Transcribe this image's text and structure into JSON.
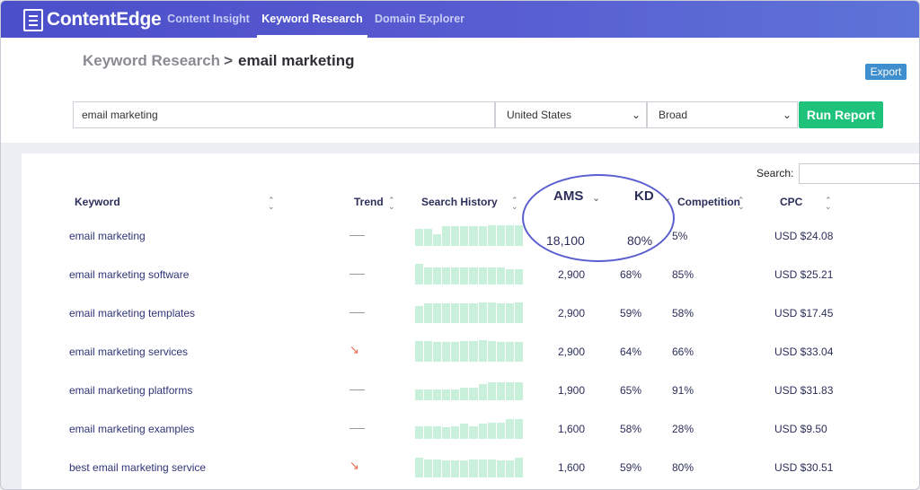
{
  "app": {
    "logo_text": "ContentEdge",
    "colors": {
      "nav": "#5659cf",
      "accent_green": "#1ec27a",
      "export_blue": "#3f8fcf",
      "trend_down": "#e8674a",
      "bar_fill": "#c9f0db"
    }
  },
  "nav": {
    "items": [
      {
        "label": "Content Insight"
      },
      {
        "label": "Keyword Research"
      },
      {
        "label": "Domain Explorer"
      }
    ]
  },
  "breadcrumb": {
    "root": "Keyword Research",
    "separator": ">",
    "current": "email marketing"
  },
  "toolbar": {
    "export_label": "Export",
    "search_value": "email marketing",
    "country": "United States",
    "match_type": "Broad",
    "run_label": "Run Report"
  },
  "table": {
    "search_label": "Search:",
    "headers": {
      "keyword": "Keyword",
      "trend": "Trend",
      "history": "Search History",
      "ams": "AMS",
      "kd": "KD",
      "competition": "Competition",
      "cpc": "CPC"
    },
    "rows": [
      {
        "keyword": "email marketing",
        "trend": "flat",
        "history": [
          0.8,
          0.8,
          0.55,
          0.9,
          0.9,
          0.9,
          0.9,
          0.9,
          0.95,
          0.95,
          0.95,
          0.95
        ],
        "ams": "18,100",
        "kd": "80%",
        "competition": "5%",
        "cpc": "USD $24.08"
      },
      {
        "keyword": "email marketing software",
        "trend": "flat",
        "history": [
          0.95,
          0.8,
          0.8,
          0.8,
          0.8,
          0.8,
          0.8,
          0.8,
          0.8,
          0.8,
          0.7,
          0.7
        ],
        "ams": "2,900",
        "kd": "68%",
        "competition": "85%",
        "cpc": "USD $25.21"
      },
      {
        "keyword": "email marketing templates",
        "trend": "flat",
        "history": [
          0.8,
          0.9,
          0.9,
          0.9,
          0.9,
          0.9,
          0.9,
          0.95,
          0.95,
          0.9,
          0.9,
          0.95
        ],
        "ams": "2,900",
        "kd": "59%",
        "competition": "58%",
        "cpc": "USD $17.45"
      },
      {
        "keyword": "email marketing services",
        "trend": "down",
        "history": [
          0.95,
          0.95,
          0.9,
          0.9,
          0.9,
          0.95,
          0.95,
          1.0,
          0.95,
          0.9,
          0.9,
          0.9
        ],
        "ams": "2,900",
        "kd": "64%",
        "competition": "66%",
        "cpc": "USD $33.04"
      },
      {
        "keyword": "email marketing platforms",
        "trend": "flat",
        "history": [
          0.5,
          0.5,
          0.5,
          0.5,
          0.5,
          0.6,
          0.6,
          0.75,
          0.85,
          0.85,
          0.85,
          0.85
        ],
        "ams": "1,900",
        "kd": "65%",
        "competition": "91%",
        "cpc": "USD $31.83"
      },
      {
        "keyword": "email marketing examples",
        "trend": "flat",
        "history": [
          0.6,
          0.6,
          0.6,
          0.55,
          0.6,
          0.7,
          0.6,
          0.7,
          0.75,
          0.75,
          0.9,
          0.9
        ],
        "ams": "1,600",
        "kd": "58%",
        "competition": "28%",
        "cpc": "USD $9.50"
      },
      {
        "keyword": "best email marketing service",
        "trend": "down",
        "history": [
          0.9,
          0.85,
          0.85,
          0.8,
          0.8,
          0.8,
          0.85,
          0.85,
          0.85,
          0.8,
          0.8,
          0.9
        ],
        "ams": "1,600",
        "kd": "59%",
        "competition": "80%",
        "cpc": "USD $30.51"
      }
    ]
  }
}
